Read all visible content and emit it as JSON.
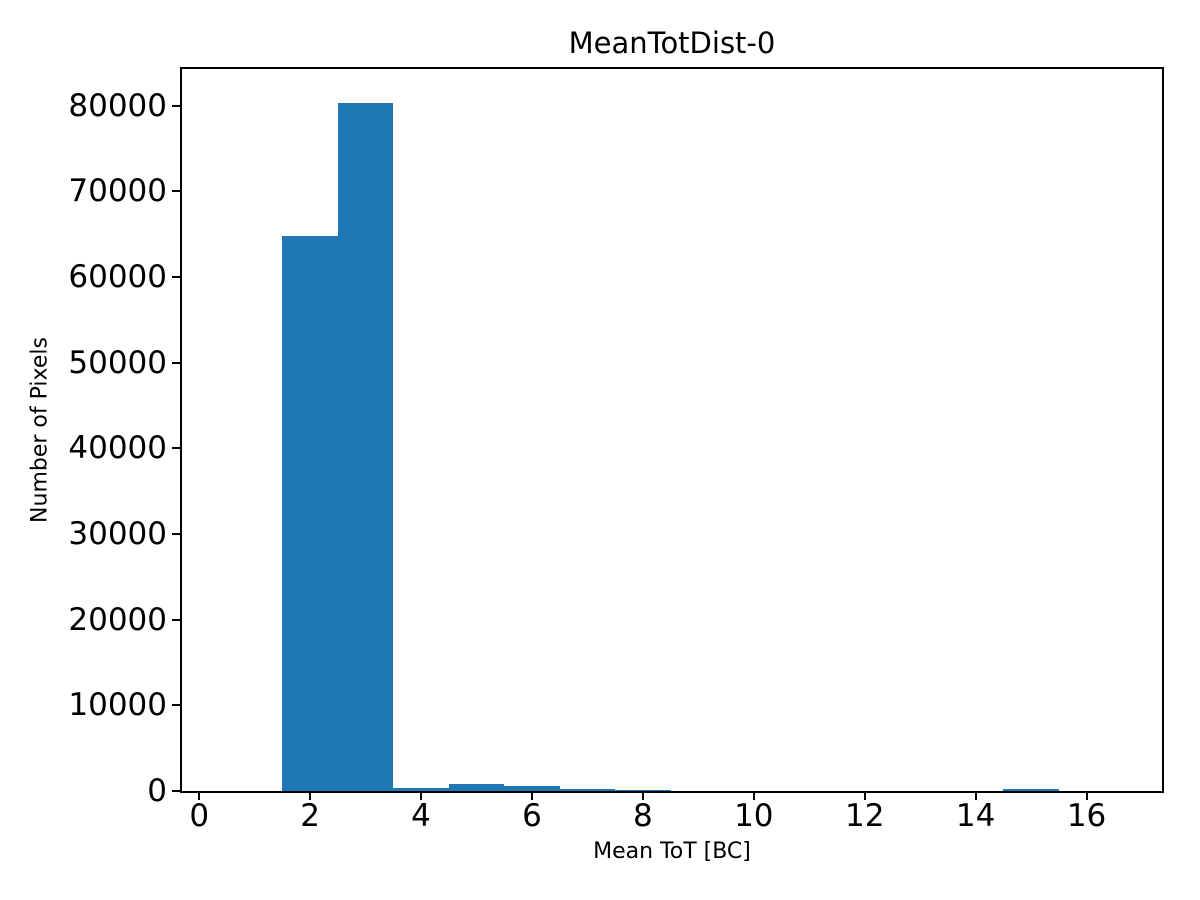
{
  "chart_data": {
    "type": "bar",
    "title": "MeanTotDist-0",
    "xlabel": "Mean ToT [BC]",
    "ylabel": "Number of Pixels",
    "bar_color": "#1f77b4",
    "axis_color": "#000000",
    "background_color": "#ffffff",
    "grid": false,
    "legend": false,
    "bin_width": 1,
    "categories": [
      1,
      2,
      3,
      4,
      5,
      6,
      7,
      8,
      9,
      10,
      11,
      12,
      13,
      14,
      15,
      16
    ],
    "values": [
      0,
      64800,
      80300,
      350,
      810,
      580,
      200,
      150,
      0,
      0,
      0,
      0,
      0,
      0,
      230,
      0
    ],
    "xticks": {
      "values": [
        0,
        2,
        4,
        6,
        8,
        10,
        12,
        14,
        16
      ],
      "labels": [
        "0",
        "2",
        "4",
        "6",
        "8",
        "10",
        "12",
        "14",
        "16"
      ]
    },
    "yticks": {
      "values": [
        0,
        10000,
        20000,
        30000,
        40000,
        50000,
        60000,
        70000,
        80000
      ],
      "labels": [
        "0",
        "10000",
        "20000",
        "30000",
        "40000",
        "50000",
        "60000",
        "70000",
        "80000"
      ]
    },
    "xlim": [
      -0.31,
      17.36
    ],
    "ylim": [
      0,
      84300
    ]
  }
}
